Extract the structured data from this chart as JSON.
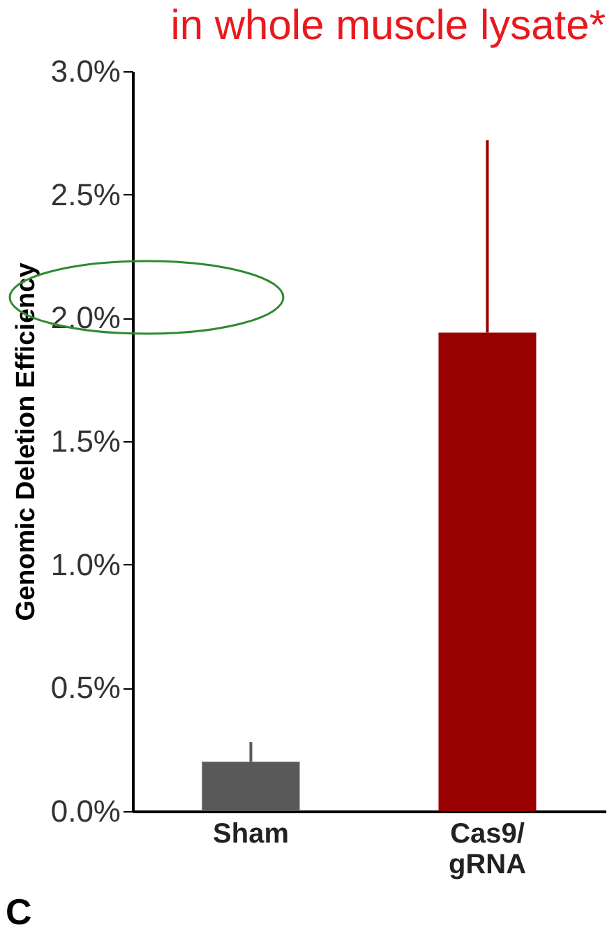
{
  "chart_data": {
    "type": "bar",
    "title": "in whole muscle lysate*",
    "ylabel": "Genomic Deletion Efficiency",
    "categories": [
      "Sham",
      "Cas9/ gRNA"
    ],
    "values": [
      0.2,
      1.94
    ],
    "colors": [
      "#595959",
      "#990000"
    ],
    "errors": [
      [
        0.2,
        0.28
      ],
      [
        1.94,
        2.72
      ]
    ],
    "ylim": [
      0,
      3
    ],
    "yticks": [
      {
        "value": 0,
        "label": "0.0%"
      },
      {
        "value": 0.5,
        "label": "0.5%"
      },
      {
        "value": 1,
        "label": "1.0%"
      },
      {
        "value": 1.5,
        "label": "1.5%"
      },
      {
        "value": 2,
        "label": "2.0%"
      },
      {
        "value": 2.5,
        "label": "2.5%"
      },
      {
        "value": 3,
        "label": "3.0%"
      }
    ],
    "grid": false,
    "legend": false,
    "annotations": [
      "C"
    ]
  }
}
